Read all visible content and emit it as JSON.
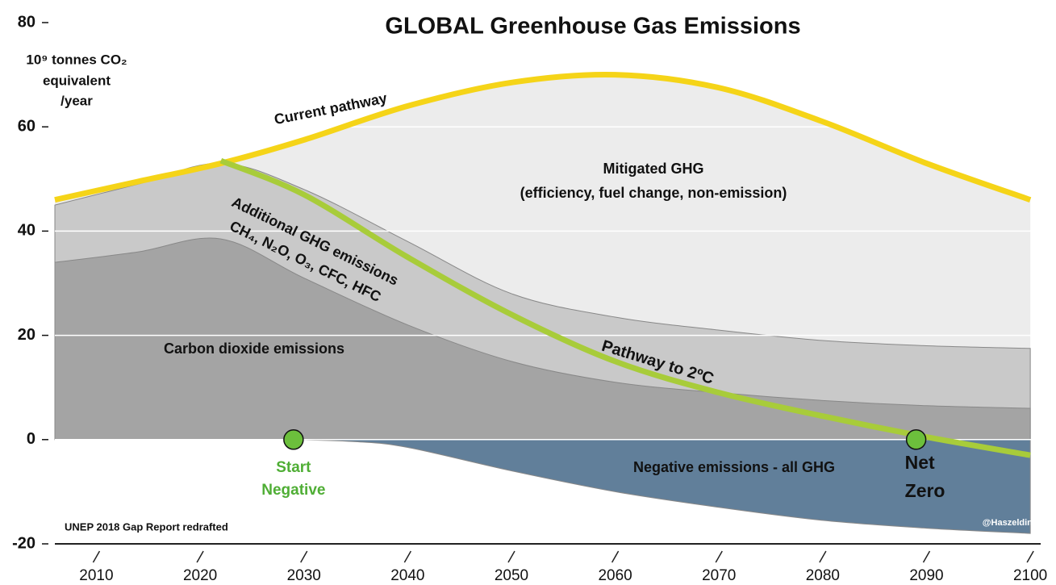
{
  "chart_data": {
    "type": "area",
    "title": "GLOBAL Greenhouse Gas Emissions",
    "y_label_lines": [
      "10⁹ tonnes CO₂",
      "equivalent",
      "/year"
    ],
    "xlim": [
      2006,
      2101
    ],
    "ylim": [
      -20,
      80
    ],
    "xticks": [
      2010,
      2020,
      2030,
      2040,
      2050,
      2060,
      2070,
      2080,
      2090,
      2100
    ],
    "yticks": [
      -20,
      0,
      20,
      40,
      60,
      80
    ],
    "grid": true,
    "grid_color": "#ffffff",
    "series": [
      {
        "name": "Current pathway",
        "kind": "line-fill",
        "color": "#f5d418",
        "fill": "#ececec",
        "x": [
          2006,
          2014,
          2022,
          2030,
          2040,
          2050,
          2060,
          2070,
          2080,
          2090,
          2100
        ],
        "values": [
          46,
          49.5,
          53,
          57.5,
          64,
          68.5,
          70,
          67.5,
          61,
          53,
          46
        ]
      },
      {
        "name": "Additional GHG emissions",
        "detail": "CH₄, N₂O, O₃, CFC, HFC",
        "kind": "fill",
        "color": "#c9c9c9",
        "x": [
          2006,
          2014,
          2022,
          2030,
          2040,
          2050,
          2060,
          2070,
          2080,
          2090,
          2100
        ],
        "values": [
          45,
          49,
          53,
          48,
          38,
          28,
          23.5,
          21,
          19,
          18,
          17.5
        ]
      },
      {
        "name": "Carbon dioxide emissions",
        "kind": "fill",
        "color": "#a4a4a4",
        "x": [
          2006,
          2014,
          2022,
          2030,
          2040,
          2050,
          2060,
          2070,
          2080,
          2090,
          2100
        ],
        "values": [
          34,
          36,
          38.5,
          31,
          22,
          15,
          11,
          9,
          7.5,
          6.5,
          6
        ]
      },
      {
        "name": "Negative emissions - all GHG",
        "kind": "fill",
        "color": "#617f9a",
        "x": [
          2029,
          2035,
          2040,
          2050,
          2060,
          2070,
          2080,
          2090,
          2100
        ],
        "values": [
          0,
          -0.4,
          -1.5,
          -6,
          -10,
          -13,
          -15.5,
          -17,
          -18
        ]
      },
      {
        "name": "Pathway to 2ºC",
        "kind": "line",
        "color": "#a8cc3a",
        "x": [
          2022,
          2030,
          2040,
          2050,
          2060,
          2070,
          2080,
          2090,
          2100
        ],
        "values": [
          53.5,
          47,
          35,
          24,
          15,
          9,
          4.5,
          0.5,
          -3
        ]
      }
    ],
    "area_labels": [
      "Mitigated GHG",
      "(efficiency, fuel change, non-emission)"
    ],
    "annotations": [
      {
        "lines": [
          "Start",
          "Negative"
        ],
        "x": 2029,
        "y": 0,
        "color": "#4fae35"
      },
      {
        "lines": [
          "Net",
          "Zero"
        ],
        "x": 2089,
        "y": 0,
        "color": "#111111"
      }
    ],
    "marker_color": "#6cbf3c",
    "source": "UNEP 2018 Gap Report redrafted",
    "credit": "@Haszeldine"
  }
}
